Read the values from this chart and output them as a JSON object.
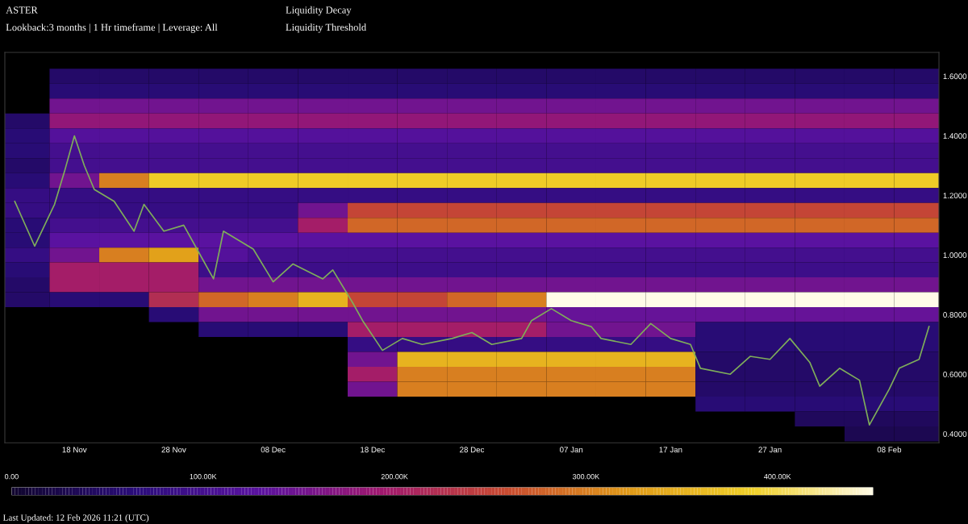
{
  "chart_data": {
    "type": "heatmap",
    "title": "ASTER",
    "annotations": [
      "Lookback:3 months | 1 Hr timeframe | Leverage: All",
      "Liquidity Decay",
      "Liquidity Threshold",
      "Last Updated: 12 Feb 2026 11:21 (UTC)"
    ],
    "x": [
      "2025-11-13",
      "2025-11-18",
      "2025-11-23",
      "2025-11-28",
      "2025-12-03",
      "2025-12-08",
      "2025-12-13",
      "2025-12-18",
      "2025-12-23",
      "2025-12-28",
      "2026-01-02",
      "2026-01-07",
      "2026-01-12",
      "2026-01-17",
      "2026-01-22",
      "2026-01-27",
      "2026-02-01",
      "2026-02-06",
      "2026-02-11"
    ],
    "y": [
      1.6,
      1.55,
      1.5,
      1.45,
      1.4,
      1.35,
      1.3,
      1.25,
      1.2,
      1.15,
      1.1,
      1.05,
      1.0,
      0.95,
      0.9,
      0.85,
      0.8,
      0.75,
      0.7,
      0.65,
      0.6,
      0.55,
      0.5,
      0.45,
      0.4
    ],
    "cells": [
      [
        null,
        50000,
        50000,
        50000,
        50000,
        50000,
        50000,
        50000,
        50000,
        50000,
        50000,
        50000,
        50000,
        50000,
        50000,
        50000,
        50000,
        50000,
        50000
      ],
      [
        null,
        60000,
        60000,
        60000,
        60000,
        60000,
        60000,
        60000,
        60000,
        60000,
        60000,
        60000,
        60000,
        60000,
        60000,
        60000,
        60000,
        60000,
        60000
      ],
      [
        null,
        150000,
        150000,
        150000,
        150000,
        150000,
        150000,
        150000,
        150000,
        150000,
        150000,
        150000,
        150000,
        150000,
        150000,
        150000,
        150000,
        150000,
        150000
      ],
      [
        50000,
        180000,
        180000,
        180000,
        180000,
        180000,
        180000,
        180000,
        180000,
        180000,
        180000,
        180000,
        180000,
        180000,
        180000,
        180000,
        180000,
        180000,
        180000
      ],
      [
        60000,
        120000,
        120000,
        120000,
        120000,
        120000,
        120000,
        120000,
        120000,
        120000,
        120000,
        120000,
        120000,
        120000,
        120000,
        120000,
        120000,
        120000,
        120000
      ],
      [
        60000,
        100000,
        100000,
        100000,
        100000,
        100000,
        100000,
        100000,
        100000,
        100000,
        100000,
        100000,
        100000,
        100000,
        100000,
        100000,
        100000,
        100000,
        100000
      ],
      [
        50000,
        100000,
        100000,
        100000,
        100000,
        100000,
        100000,
        100000,
        100000,
        100000,
        100000,
        100000,
        100000,
        100000,
        100000,
        100000,
        100000,
        100000,
        100000
      ],
      [
        60000,
        150000,
        300000,
        380000,
        380000,
        380000,
        380000,
        380000,
        380000,
        380000,
        380000,
        380000,
        380000,
        380000,
        380000,
        380000,
        380000,
        380000,
        380000
      ],
      [
        80000,
        80000,
        80000,
        80000,
        80000,
        80000,
        80000,
        80000,
        80000,
        80000,
        80000,
        80000,
        80000,
        80000,
        80000,
        80000,
        80000,
        80000,
        80000
      ],
      [
        80000,
        80000,
        80000,
        80000,
        80000,
        80000,
        150000,
        250000,
        250000,
        250000,
        250000,
        250000,
        250000,
        250000,
        250000,
        250000,
        250000,
        250000,
        250000
      ],
      [
        60000,
        100000,
        100000,
        100000,
        100000,
        100000,
        200000,
        280000,
        280000,
        280000,
        280000,
        280000,
        280000,
        280000,
        280000,
        280000,
        280000,
        280000,
        280000
      ],
      [
        60000,
        130000,
        130000,
        130000,
        130000,
        130000,
        130000,
        130000,
        130000,
        130000,
        130000,
        130000,
        130000,
        130000,
        130000,
        130000,
        130000,
        130000,
        130000
      ],
      [
        80000,
        150000,
        300000,
        330000,
        120000,
        100000,
        100000,
        100000,
        100000,
        100000,
        100000,
        100000,
        100000,
        100000,
        100000,
        100000,
        100000,
        100000,
        100000
      ],
      [
        60000,
        200000,
        200000,
        200000,
        90000,
        90000,
        90000,
        90000,
        90000,
        90000,
        90000,
        90000,
        90000,
        90000,
        90000,
        90000,
        90000,
        90000,
        90000
      ],
      [
        50000,
        200000,
        200000,
        200000,
        150000,
        150000,
        150000,
        150000,
        150000,
        150000,
        150000,
        150000,
        150000,
        150000,
        150000,
        150000,
        150000,
        150000,
        150000
      ],
      [
        50000,
        60000,
        60000,
        220000,
        280000,
        300000,
        350000,
        250000,
        250000,
        280000,
        300000,
        450000,
        450000,
        450000,
        450000,
        450000,
        450000,
        450000,
        450000
      ],
      [
        null,
        null,
        null,
        60000,
        150000,
        150000,
        150000,
        150000,
        150000,
        150000,
        150000,
        140000,
        140000,
        140000,
        140000,
        140000,
        140000,
        140000,
        140000
      ],
      [
        null,
        null,
        null,
        null,
        60000,
        60000,
        60000,
        200000,
        200000,
        200000,
        200000,
        150000,
        150000,
        150000,
        60000,
        60000,
        60000,
        60000,
        60000
      ],
      [
        null,
        null,
        null,
        null,
        null,
        null,
        null,
        80000,
        80000,
        80000,
        80000,
        80000,
        80000,
        80000,
        60000,
        60000,
        60000,
        60000,
        60000
      ],
      [
        null,
        null,
        null,
        null,
        null,
        null,
        null,
        150000,
        350000,
        350000,
        350000,
        350000,
        350000,
        350000,
        50000,
        50000,
        50000,
        50000,
        50000
      ],
      [
        null,
        null,
        null,
        null,
        null,
        null,
        null,
        200000,
        300000,
        300000,
        300000,
        300000,
        300000,
        300000,
        50000,
        50000,
        50000,
        50000,
        50000
      ],
      [
        null,
        null,
        null,
        null,
        null,
        null,
        null,
        150000,
        300000,
        300000,
        300000,
        300000,
        300000,
        300000,
        50000,
        50000,
        50000,
        50000,
        50000
      ],
      [
        null,
        null,
        null,
        null,
        null,
        null,
        null,
        null,
        null,
        null,
        null,
        null,
        null,
        null,
        60000,
        60000,
        60000,
        60000,
        60000
      ],
      [
        null,
        null,
        null,
        null,
        null,
        null,
        null,
        null,
        null,
        null,
        null,
        null,
        null,
        null,
        null,
        null,
        40000,
        40000,
        40000
      ],
      [
        null,
        null,
        null,
        null,
        null,
        null,
        null,
        null,
        null,
        null,
        null,
        null,
        null,
        null,
        null,
        null,
        null,
        30000,
        30000
      ]
    ],
    "clim": [
      0,
      450000
    ],
    "cticks": [
      {
        "value": 0,
        "label": "0.00"
      },
      {
        "value": 100000,
        "label": "100.00K"
      },
      {
        "value": 200000,
        "label": "200.00K"
      },
      {
        "value": 300000,
        "label": "300.00K"
      },
      {
        "value": 400000,
        "label": "400.00K"
      }
    ],
    "series": [
      {
        "type": "line",
        "color": "#7fae5a",
        "x": [
          "2025-11-12",
          "2025-11-14",
          "2025-11-16",
          "2025-11-17",
          "2025-11-18",
          "2025-11-19",
          "2025-11-20",
          "2025-11-22",
          "2025-11-24",
          "2025-11-25",
          "2025-11-27",
          "2025-11-29",
          "2025-12-01",
          "2025-12-02",
          "2025-12-03",
          "2025-12-06",
          "2025-12-08",
          "2025-12-10",
          "2025-12-13",
          "2025-12-14",
          "2025-12-16",
          "2025-12-17",
          "2025-12-19",
          "2025-12-21",
          "2025-12-23",
          "2025-12-26",
          "2025-12-28",
          "2025-12-30",
          "2026-01-02",
          "2026-01-03",
          "2026-01-05",
          "2026-01-07",
          "2026-01-09",
          "2026-01-10",
          "2026-01-13",
          "2026-01-15",
          "2026-01-17",
          "2026-01-19",
          "2026-01-20",
          "2026-01-23",
          "2026-01-25",
          "2026-01-27",
          "2026-01-29",
          "2026-01-31",
          "2026-02-01",
          "2026-02-03",
          "2026-02-05",
          "2026-02-06",
          "2026-02-08",
          "2026-02-09",
          "2026-02-11",
          "2026-02-12"
        ],
        "values": [
          1.18,
          1.03,
          1.17,
          1.28,
          1.4,
          1.3,
          1.22,
          1.18,
          1.08,
          1.17,
          1.08,
          1.1,
          0.98,
          0.92,
          1.08,
          1.02,
          0.91,
          0.97,
          0.92,
          0.95,
          0.84,
          0.78,
          0.68,
          0.72,
          0.7,
          0.72,
          0.74,
          0.7,
          0.72,
          0.78,
          0.82,
          0.78,
          0.76,
          0.72,
          0.7,
          0.77,
          0.72,
          0.7,
          0.62,
          0.6,
          0.66,
          0.65,
          0.72,
          0.64,
          0.56,
          0.62,
          0.58,
          0.43,
          0.55,
          0.62,
          0.65,
          0.76
        ]
      }
    ],
    "xlim": [
      "2025-11-11",
      "2026-02-13"
    ],
    "xticks": [
      {
        "value": "2025-11-18",
        "label": "18 Nov"
      },
      {
        "value": "2025-11-28",
        "label": "28 Nov"
      },
      {
        "value": "2025-12-08",
        "label": "08 Dec"
      },
      {
        "value": "2025-12-18",
        "label": "18 Dec"
      },
      {
        "value": "2025-12-28",
        "label": "28 Dec"
      },
      {
        "value": "2026-01-07",
        "label": "07 Jan"
      },
      {
        "value": "2026-01-17",
        "label": "17 Jan"
      },
      {
        "value": "2026-01-27",
        "label": "27 Jan"
      },
      {
        "value": "2026-02-08",
        "label": "08 Feb"
      }
    ],
    "ylim": [
      0.37,
      1.68
    ],
    "yticks": [
      {
        "value": 0.4,
        "label": "0.4000"
      },
      {
        "value": 0.6,
        "label": "0.6000"
      },
      {
        "value": 0.8,
        "label": "0.8000"
      },
      {
        "value": 1.0,
        "label": "1.0000"
      },
      {
        "value": 1.2,
        "label": "1.2000"
      },
      {
        "value": 1.4,
        "label": "1.4000"
      },
      {
        "value": 1.6,
        "label": "1.6000"
      }
    ],
    "grid": false
  }
}
